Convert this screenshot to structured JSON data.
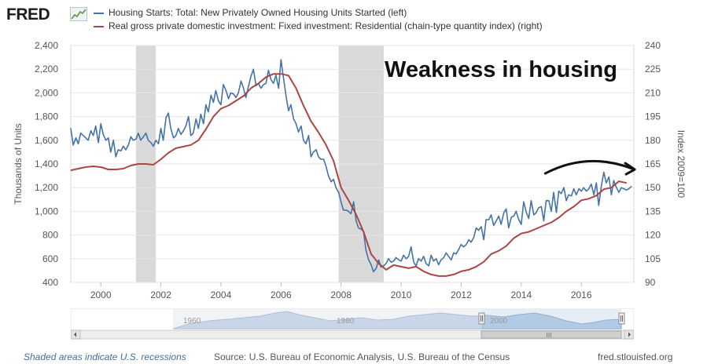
{
  "logo": {
    "text": "FRED",
    "icon": "fred-chart-icon"
  },
  "legend": [
    {
      "label": "Housing Starts: Total: New Privately Owned Housing Units Started (left)",
      "color": "#4572a7"
    },
    {
      "label": "Real gross private domestic investment: Fixed investment: Residential (chain-type quantity index) (right)",
      "color": "#aa4643"
    }
  ],
  "annotation": {
    "text": "Weakness in housing"
  },
  "footer": {
    "recession_note": "Shaded areas indicate U.S. recessions",
    "source": "Source: U.S. Bureau of Economic Analysis, U.S. Bureau of the Census",
    "site": "fred.stlouisfed.org"
  },
  "navigator": {
    "labels": [
      "1960",
      "1980",
      "2000"
    ],
    "scroll_grip": "III"
  },
  "chart_data": {
    "type": "line",
    "x_range": [
      1999.0,
      2017.75
    ],
    "x_ticks": [
      2000,
      2002,
      2004,
      2006,
      2008,
      2010,
      2012,
      2014,
      2016
    ],
    "x_tick_labels": [
      "2000",
      "2002",
      "2004",
      "2006",
      "2008",
      "2010",
      "2012",
      "2014",
      "2016"
    ],
    "ylabel_left": "Thousands of Units",
    "ylabel_right": "Index 2009=100",
    "ylim_left": [
      400,
      2400
    ],
    "ylim_right": [
      90,
      240
    ],
    "y_ticks_left": [
      400,
      600,
      800,
      1000,
      1200,
      1400,
      1600,
      1800,
      2000,
      2200,
      2400
    ],
    "y_tick_labels_left": [
      "400",
      "600",
      "800",
      "1,000",
      "1,200",
      "1,400",
      "1,600",
      "1,800",
      "2,000",
      "2,200",
      "2,400"
    ],
    "y_ticks_right": [
      90,
      105,
      120,
      135,
      150,
      165,
      180,
      195,
      210,
      225,
      240
    ],
    "y_tick_labels_right": [
      "90",
      "105",
      "120",
      "135",
      "150",
      "165",
      "180",
      "195",
      "210",
      "225",
      "240"
    ],
    "recessions": [
      [
        2001.17,
        2001.83
      ],
      [
        2007.92,
        2009.42
      ]
    ],
    "series": [
      {
        "name": "Housing Starts: Total: New Privately Owned Housing Units Started (left)",
        "axis": "left",
        "color": "#4572a7",
        "x": [
          1999.0,
          1999.08,
          1999.17,
          1999.25,
          1999.33,
          1999.42,
          1999.5,
          1999.58,
          1999.67,
          1999.75,
          1999.83,
          1999.92,
          2000.0,
          2000.08,
          2000.17,
          2000.25,
          2000.33,
          2000.42,
          2000.5,
          2000.58,
          2000.67,
          2000.75,
          2000.83,
          2000.92,
          2001.0,
          2001.08,
          2001.17,
          2001.25,
          2001.33,
          2001.42,
          2001.5,
          2001.58,
          2001.67,
          2001.75,
          2001.83,
          2001.92,
          2002.0,
          2002.08,
          2002.17,
          2002.25,
          2002.33,
          2002.42,
          2002.5,
          2002.58,
          2002.67,
          2002.75,
          2002.83,
          2002.92,
          2003.0,
          2003.08,
          2003.17,
          2003.25,
          2003.33,
          2003.42,
          2003.5,
          2003.58,
          2003.67,
          2003.75,
          2003.83,
          2003.92,
          2004.0,
          2004.08,
          2004.17,
          2004.25,
          2004.33,
          2004.42,
          2004.5,
          2004.58,
          2004.67,
          2004.75,
          2004.83,
          2004.92,
          2005.0,
          2005.08,
          2005.17,
          2005.25,
          2005.33,
          2005.42,
          2005.5,
          2005.58,
          2005.67,
          2005.75,
          2005.83,
          2005.92,
          2006.0,
          2006.08,
          2006.17,
          2006.25,
          2006.33,
          2006.42,
          2006.5,
          2006.58,
          2006.67,
          2006.75,
          2006.83,
          2006.92,
          2007.0,
          2007.08,
          2007.17,
          2007.25,
          2007.33,
          2007.42,
          2007.5,
          2007.58,
          2007.67,
          2007.75,
          2007.83,
          2007.92,
          2008.0,
          2008.08,
          2008.17,
          2008.25,
          2008.33,
          2008.42,
          2008.5,
          2008.58,
          2008.67,
          2008.75,
          2008.83,
          2008.92,
          2009.0,
          2009.08,
          2009.17,
          2009.25,
          2009.33,
          2009.42,
          2009.5,
          2009.58,
          2009.67,
          2009.75,
          2009.83,
          2009.92,
          2010.0,
          2010.08,
          2010.17,
          2010.25,
          2010.33,
          2010.42,
          2010.5,
          2010.58,
          2010.67,
          2010.75,
          2010.83,
          2010.92,
          2011.0,
          2011.08,
          2011.17,
          2011.25,
          2011.33,
          2011.42,
          2011.5,
          2011.58,
          2011.67,
          2011.75,
          2011.83,
          2011.92,
          2012.0,
          2012.08,
          2012.17,
          2012.25,
          2012.33,
          2012.42,
          2012.5,
          2012.58,
          2012.67,
          2012.75,
          2012.83,
          2012.92,
          2013.0,
          2013.08,
          2013.17,
          2013.25,
          2013.33,
          2013.42,
          2013.5,
          2013.58,
          2013.67,
          2013.75,
          2013.83,
          2013.92,
          2014.0,
          2014.08,
          2014.17,
          2014.25,
          2014.33,
          2014.42,
          2014.5,
          2014.58,
          2014.67,
          2014.75,
          2014.83,
          2014.92,
          2015.0,
          2015.08,
          2015.17,
          2015.25,
          2015.33,
          2015.42,
          2015.5,
          2015.58,
          2015.67,
          2015.75,
          2015.83,
          2015.92,
          2016.0,
          2016.08,
          2016.17,
          2016.25,
          2016.33,
          2016.42,
          2016.5,
          2016.58,
          2016.67,
          2016.75,
          2016.83,
          2016.92,
          2017.0,
          2017.08,
          2017.17,
          2017.25,
          2017.33,
          2017.42,
          2017.5,
          2017.58,
          2017.67
        ],
        "values": [
          1700,
          1560,
          1620,
          1570,
          1660,
          1640,
          1620,
          1600,
          1680,
          1640,
          1720,
          1580,
          1740,
          1650,
          1600,
          1620,
          1500,
          1600,
          1460,
          1520,
          1510,
          1550,
          1520,
          1560,
          1630,
          1600,
          1610,
          1660,
          1600,
          1630,
          1660,
          1600,
          1580,
          1550,
          1600,
          1570,
          1700,
          1600,
          1790,
          1830,
          1700,
          1620,
          1640,
          1700,
          1650,
          1680,
          1720,
          1800,
          1640,
          1660,
          1780,
          1700,
          1820,
          1740,
          1900,
          1840,
          1980,
          1920,
          2020,
          1930,
          1900,
          2070,
          2020,
          1950,
          2000,
          1990,
          1960,
          2000,
          2100,
          2040,
          1960,
          2060,
          2140,
          2200,
          2060,
          2080,
          2040,
          2070,
          2080,
          2190,
          2110,
          2080,
          2150,
          2040,
          2280,
          2130,
          1970,
          1850,
          1900,
          1780,
          1740,
          1670,
          1720,
          1600,
          1570,
          1640,
          1460,
          1500,
          1520,
          1460,
          1440,
          1440,
          1380,
          1300,
          1250,
          1270,
          1200,
          1160,
          1080,
          1010,
          1010,
          1000,
          980,
          1080,
          920,
          860,
          850,
          830,
          670,
          590,
          550,
          490,
          520,
          590,
          530,
          540,
          560,
          600,
          570,
          580,
          610,
          590,
          580,
          630,
          600,
          620,
          700,
          570,
          540,
          600,
          580,
          620,
          560,
          540,
          630,
          580,
          600,
          550,
          590,
          610,
          650,
          620,
          590,
          650,
          640,
          680,
          720,
          700,
          720,
          760,
          740,
          780,
          860,
          840,
          870,
          760,
          930,
          930,
          970,
          880,
          920,
          960,
          890,
          990,
          1020,
          860,
          950,
          960,
          1000,
          930,
          890,
          1080,
          990,
          940,
          1090,
          970,
          990,
          1030,
          1040,
          920,
          1090,
          1090,
          1000,
          1160,
          990,
          1170,
          1150,
          1200,
          1090,
          1140,
          1130,
          1190,
          1140,
          1190,
          1170,
          1200,
          1170,
          1190,
          1230,
          1140,
          1240,
          1050,
          1220,
          1330,
          1240,
          1290,
          1140,
          1260,
          1200,
          1160,
          1200,
          1190,
          1180,
          1190,
          1210
        ]
      },
      {
        "name": "Real gross private domestic investment: Fixed investment: Residential (chain-type quantity index) (right)",
        "axis": "right",
        "color": "#aa4643",
        "x": [
          1999.0,
          1999.25,
          1999.5,
          1999.75,
          2000.0,
          2000.25,
          2000.5,
          2000.75,
          2001.0,
          2001.25,
          2001.5,
          2001.75,
          2002.0,
          2002.25,
          2002.5,
          2002.75,
          2003.0,
          2003.25,
          2003.5,
          2003.75,
          2004.0,
          2004.25,
          2004.5,
          2004.75,
          2005.0,
          2005.25,
          2005.5,
          2005.75,
          2006.0,
          2006.25,
          2006.5,
          2006.75,
          2007.0,
          2007.25,
          2007.5,
          2007.75,
          2008.0,
          2008.25,
          2008.5,
          2008.75,
          2009.0,
          2009.25,
          2009.5,
          2009.75,
          2010.0,
          2010.25,
          2010.5,
          2010.75,
          2011.0,
          2011.25,
          2011.5,
          2011.75,
          2012.0,
          2012.25,
          2012.5,
          2012.75,
          2013.0,
          2013.25,
          2013.5,
          2013.75,
          2014.0,
          2014.25,
          2014.5,
          2014.75,
          2015.0,
          2015.25,
          2015.5,
          2015.75,
          2016.0,
          2016.25,
          2016.5,
          2016.75,
          2017.0,
          2017.25,
          2017.5
        ],
        "values": [
          161,
          162,
          163,
          163.5,
          163,
          161.5,
          161.5,
          162,
          164,
          165,
          165,
          164.5,
          168,
          172,
          175,
          176,
          177,
          180,
          187,
          195,
          200,
          202,
          205,
          208,
          213,
          216,
          220,
          222,
          222,
          221,
          213,
          202,
          192,
          185,
          177,
          167,
          150,
          142,
          133,
          122,
          108,
          102,
          98,
          101,
          100,
          99,
          100,
          97,
          95,
          94,
          94,
          95,
          97,
          98,
          100,
          103,
          108,
          110,
          113,
          118,
          121,
          122,
          124,
          126,
          128,
          131,
          135,
          138,
          142,
          143,
          145,
          149,
          150,
          154,
          153
        ]
      }
    ],
    "annotation_arrow": {
      "points": [
        [
          2014.8,
          159
        ],
        [
          2016.2,
          167
        ],
        [
          2017.7,
          162
        ]
      ]
    }
  }
}
